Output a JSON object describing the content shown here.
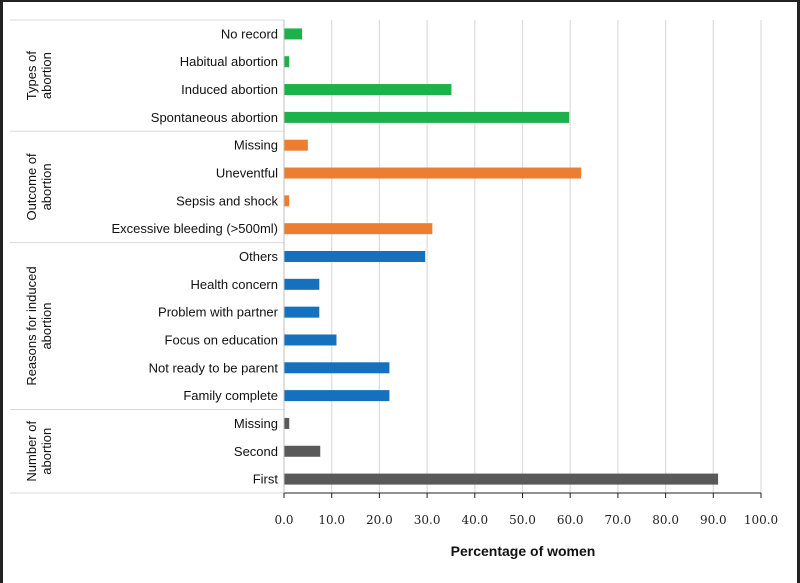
{
  "chart_data": {
    "type": "bar",
    "orientation": "horizontal",
    "title": "",
    "xlabel": "Percentage of women",
    "ylabel": "",
    "xlim": [
      0,
      100
    ],
    "xticks": [
      "0.0",
      "10.0",
      "20.0",
      "30.0",
      "40.0",
      "50.0",
      "60.0",
      "70.0",
      "80.0",
      "90.0",
      "100.0"
    ],
    "grid": true,
    "groups": [
      {
        "name": "Types of abortion",
        "name_lines": [
          "Types of",
          "abortion"
        ],
        "color": "#1db14b",
        "categories": [
          "No record",
          "Habitual abortion",
          "Induced abortion",
          "Spontaneous abortion"
        ],
        "values": [
          3.8,
          1.1,
          35.1,
          59.8
        ]
      },
      {
        "name": "Outcome of abortion",
        "name_lines": [
          "Outcome of",
          "abortion"
        ],
        "color": "#ed7d31",
        "categories": [
          "Missing",
          "Uneventful",
          "Sepsis and shock",
          "Excessive bleeding (>500ml)"
        ],
        "values": [
          5.0,
          62.3,
          1.1,
          31.1
        ]
      },
      {
        "name": "Reasons for induced abortion",
        "name_lines": [
          "Reasons for induced",
          "abortion"
        ],
        "color": "#1570bd",
        "categories": [
          "Others",
          "Health concern",
          "Problem with partner",
          "Focus on education",
          "Not ready to be parent",
          "Family complete"
        ],
        "values": [
          29.6,
          7.4,
          7.4,
          11.0,
          22.1,
          22.1
        ]
      },
      {
        "name": "Number of abortion",
        "name_lines": [
          "Number of",
          "abortion"
        ],
        "color": "#595959",
        "categories": [
          "Missing",
          "Second",
          "First"
        ],
        "values": [
          1.1,
          7.6,
          91.0
        ]
      }
    ]
  }
}
